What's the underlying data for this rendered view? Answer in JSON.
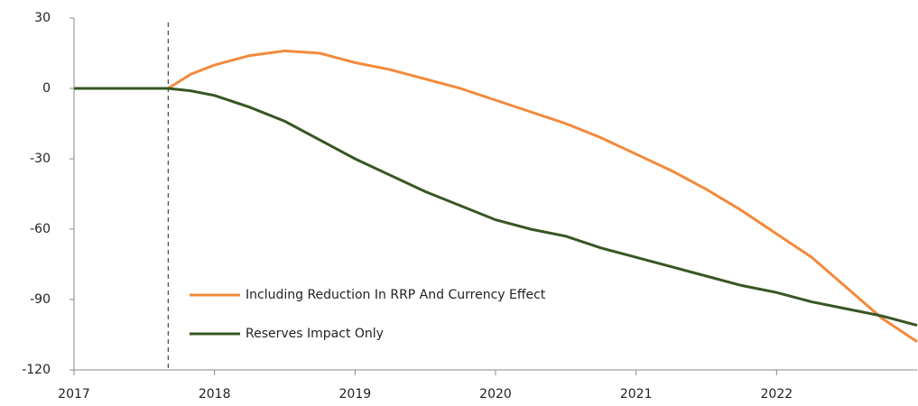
{
  "chart_data": {
    "type": "line",
    "x": [
      2017,
      2017.67,
      2017.83,
      2018,
      2018.25,
      2018.5,
      2018.75,
      2019,
      2019.25,
      2019.5,
      2019.75,
      2020,
      2020.25,
      2020.5,
      2020.75,
      2021,
      2021.25,
      2021.5,
      2021.75,
      2022,
      2022.25,
      2022.5,
      2022.75,
      2023
    ],
    "series": [
      {
        "name": "Including Reduction In RRP And Currency Effect",
        "color": "#f28a3c",
        "values": [
          null,
          0,
          6,
          10,
          14,
          16,
          15,
          11,
          8,
          4,
          0,
          -5,
          -10,
          -15,
          -21,
          -28,
          -35,
          -43,
          -52,
          -62,
          -72,
          -85,
          -98,
          -108
        ]
      },
      {
        "name": "Reserves Impact Only",
        "color": "#375623",
        "values": [
          0,
          0,
          -1,
          -3,
          -8,
          -14,
          -22,
          -30,
          -37,
          -44,
          -50,
          -56,
          -60,
          -63,
          -68,
          -72,
          -76,
          -80,
          -84,
          -87,
          -91,
          -94,
          -97,
          -101
        ]
      }
    ],
    "vline": 2017.67,
    "xlim": [
      2017,
      2023
    ],
    "xticks": [
      2017,
      2018,
      2019,
      2020,
      2021,
      2022
    ],
    "ylim": [
      -120,
      30
    ],
    "yticks": [
      -120,
      -90,
      -60,
      -30,
      0,
      30
    ],
    "legend": "lower left"
  }
}
